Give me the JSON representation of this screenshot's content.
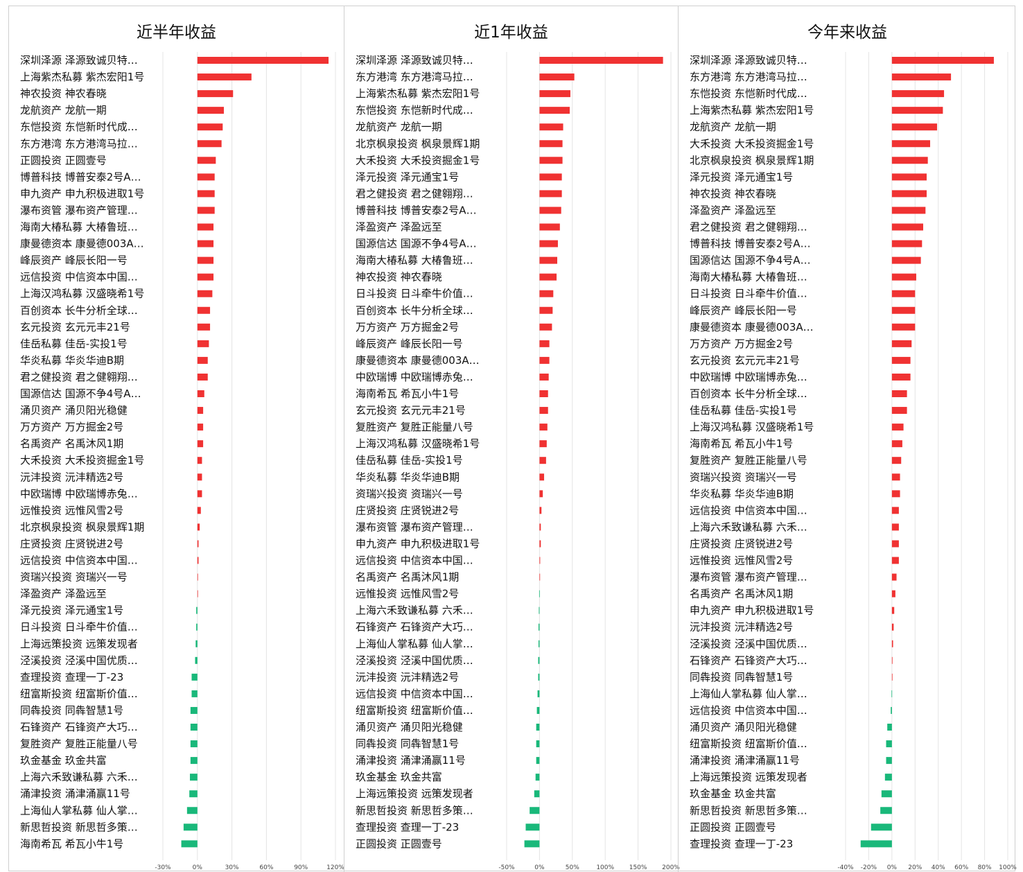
{
  "colors": {
    "positive": "#f03232",
    "negative": "#19b87a",
    "grid": "#e4e4e4",
    "border": "#cfcfcf"
  },
  "chart_data": [
    {
      "type": "bar",
      "orientation": "horizontal",
      "title": "近半年收益",
      "unit": "%",
      "xlim": [
        -30,
        120
      ],
      "xticks": [
        -30,
        0,
        30,
        60,
        90,
        120
      ],
      "tick_labels": [
        "-30%",
        "0%",
        "30%",
        "60%",
        "90%",
        "120%"
      ],
      "grid": true,
      "categories": [
        "深圳泽源 泽源致诚贝特…",
        "上海紫杰私募 紫杰宏阳1号",
        "神农投资 神农春晓",
        "龙航资产 龙航一期",
        "东恺投资 东恺新时代成…",
        "东方港湾 东方港湾马拉…",
        "正圆投资 正圆壹号",
        "博普科技 博普安泰2号A…",
        "申九资产 申九积极进取1号",
        "瀑布资管 瀑布资产管理…",
        "海南大椿私募 大椿鲁班…",
        "康曼德资本 康曼德003A…",
        "峰辰资产 峰辰长阳一号",
        "远信投资 中信资本中国…",
        "上海汉鸿私募 汉盛晓希1号",
        "百创资本 长牛分析全球…",
        "玄元投资 玄元元丰21号",
        "佳岳私募 佳岳-实投1号",
        "华炎私募 华炎华迪B期",
        "君之健投资 君之健翱翔…",
        "国源信达 国源不争4号A…",
        "涌贝资产 涌贝阳光稳健",
        "万方资产 万方掘金2号",
        "名禹资产 名禹沐风1期",
        "大禾投资 大禾投资掘金1号",
        "沅沣投资 沅沣精选2号",
        "中欧瑞博 中欧瑞博赤兔…",
        "远惟投资 远惟风雪2号",
        "北京枫泉投资 枫泉景辉1期",
        "庄贤投资 庄贤锐进2号",
        "远信投资 中信资本中国…",
        "资瑞兴投资 资瑞兴一号",
        "泽盈资产 泽盈远至",
        "泽元投资 泽元通宝1号",
        "日斗投资 日斗牵牛价值…",
        "上海远策投资 远策发现者",
        "泾溪投资 泾溪中国优质…",
        "查理投资 查理一丁-23",
        "纽富斯投资 纽富斯价值…",
        "同犇投资 同犇智慧1号",
        "石锋资产 石锋资产大巧…",
        "复胜资产 复胜正能量八号",
        "玖金基金 玖金共富",
        "上海六禾致谦私募 六禾…",
        "涌津投资 涌津涌赢11号",
        "上海仙人掌私募 仙人掌…",
        "新思哲投资 新思哲多策…",
        "海南希瓦 希瓦小牛1号"
      ],
      "values": [
        114,
        47,
        31,
        23,
        22,
        21,
        16,
        15,
        15,
        15,
        14,
        14,
        14,
        14,
        13,
        11,
        11,
        10,
        9,
        9,
        6,
        5,
        5,
        5,
        4,
        4,
        4,
        3,
        2,
        1,
        1,
        0.5,
        0.3,
        -1,
        -1,
        -1.5,
        -2,
        -5,
        -5,
        -6,
        -6,
        -6,
        -6,
        -6.5,
        -7,
        -9,
        -12,
        -14
      ]
    },
    {
      "type": "bar",
      "orientation": "horizontal",
      "title": "近1年收益",
      "unit": "%",
      "xlim": [
        -50,
        200
      ],
      "xticks": [
        -50,
        0,
        50,
        100,
        150,
        200
      ],
      "tick_labels": [
        "-50%",
        "0%",
        "50%",
        "100%",
        "150%",
        "200%"
      ],
      "grid": true,
      "categories": [
        "深圳泽源 泽源致诚贝特…",
        "东方港湾 东方港湾马拉…",
        "上海紫杰私募 紫杰宏阳1号",
        "东恺投资 东恺新时代成…",
        "龙航资产 龙航一期",
        "北京枫泉投资 枫泉景辉1期",
        "大禾投资 大禾投资掘金1号",
        "泽元投资 泽元通宝1号",
        "君之健投资 君之健翱翔…",
        "博普科技 博普安泰2号A…",
        "泽盈资产 泽盈远至",
        "国源信达 国源不争4号A…",
        "海南大椿私募 大椿鲁班…",
        "神农投资 神农春晓",
        "日斗投资 日斗牵牛价值…",
        "百创资本 长牛分析全球…",
        "万方资产 万方掘金2号",
        "峰辰资产 峰辰长阳一号",
        "康曼德资本 康曼德003A…",
        "中欧瑞博 中欧瑞博赤兔…",
        "海南希瓦 希瓦小牛1号",
        "玄元投资 玄元元丰21号",
        "复胜资产 复胜正能量八号",
        "上海汉鸿私募 汉盛晓希1号",
        "佳岳私募 佳岳-实投1号",
        "华炎私募 华炎华迪B期",
        "资瑞兴投资 资瑞兴一号",
        "庄贤投资 庄贤锐进2号",
        "瀑布资管 瀑布资产管理…",
        "申九资产 申九积极进取1号",
        "远信投资 中信资本中国…",
        "名禹资产 名禹沐风1期",
        "远惟投资 远惟风雪2号",
        "上海六禾致谦私募 六禾…",
        "石锋资产 石锋资产大巧…",
        "上海仙人掌私募 仙人掌…",
        "泾溪投资 泾溪中国优质…",
        "沅沣投资 沅沣精选2号",
        "远信投资 中信资本中国…",
        "纽富斯投资 纽富斯价值…",
        "涌贝资产 涌贝阳光稳健",
        "同犇投资 同犇智慧1号",
        "涌津投资 涌津涌赢11号",
        "玖金基金 玖金共富",
        "上海远策投资 远策发现者",
        "新思哲投资 新思哲多策…",
        "查理投资 查理一丁-23",
        "正圆投资 正圆壹号"
      ],
      "values": [
        188,
        53,
        47,
        46,
        36,
        35,
        35,
        34,
        34,
        33,
        31,
        28,
        27,
        26,
        21,
        20,
        19,
        15,
        15,
        14,
        13,
        13,
        12,
        11,
        10,
        7,
        5,
        3,
        2,
        2,
        1,
        0.5,
        -0.5,
        -1,
        -1.5,
        -1.5,
        -2,
        -2,
        -3,
        -4,
        -5,
        -5,
        -5,
        -6,
        -8,
        -15,
        -21,
        -23
      ]
    },
    {
      "type": "bar",
      "orientation": "horizontal",
      "title": "今年来收益",
      "unit": "%",
      "xlim": [
        -40,
        100
      ],
      "xticks": [
        -40,
        -20,
        0,
        20,
        40,
        60,
        80,
        100
      ],
      "tick_labels": [
        "-40%",
        "-20%",
        "0%",
        "20%",
        "40%",
        "60%",
        "80%",
        "100%"
      ],
      "grid": true,
      "categories": [
        "深圳泽源 泽源致诚贝特…",
        "东方港湾 东方港湾马拉…",
        "东恺投资 东恺新时代成…",
        "上海紫杰私募 紫杰宏阳1号",
        "龙航资产 龙航一期",
        "大禾投资 大禾投资掘金1号",
        "北京枫泉投资 枫泉景辉1期",
        "泽元投资 泽元通宝1号",
        "神农投资 神农春晓",
        "泽盈资产 泽盈远至",
        "君之健投资 君之健翱翔…",
        "博普科技 博普安泰2号A…",
        "国源信达 国源不争4号A…",
        "海南大椿私募 大椿鲁班…",
        "日斗投资 日斗牵牛价值…",
        "峰辰资产 峰辰长阳一号",
        "康曼德资本 康曼德003A…",
        "万方资产 万方掘金2号",
        "玄元投资 玄元元丰21号",
        "中欧瑞博 中欧瑞博赤兔…",
        "百创资本 长牛分析全球…",
        "佳岳私募 佳岳-实投1号",
        "上海汉鸿私募 汉盛晓希1号",
        "海南希瓦 希瓦小牛1号",
        "复胜资产 复胜正能量八号",
        "资瑞兴投资 资瑞兴一号",
        "华炎私募 华炎华迪B期",
        "远信投资 中信资本中国…",
        "上海六禾致谦私募 六禾…",
        "庄贤投资 庄贤锐进2号",
        "远惟投资 远惟风雪2号",
        "瀑布资管 瀑布资产管理…",
        "名禹资产 名禹沐风1期",
        "申九资产 申九积极进取1号",
        "沅沣投资 沅沣精选2号",
        "泾溪投资 泾溪中国优质…",
        "石锋资产 石锋资产大巧…",
        "同犇投资 同犇智慧1号",
        "上海仙人掌私募 仙人掌…",
        "远信投资 中信资本中国…",
        "涌贝资产 涌贝阳光稳健",
        "纽富斯投资 纽富斯价值…",
        "涌津投资 涌津涌赢11号",
        "上海远策投资 远策发现者",
        "玖金基金 玖金共富",
        "新思哲投资 新思哲多策…",
        "正圆投资 正圆壹号",
        "查理投资 查理一丁-23"
      ],
      "values": [
        88,
        51,
        45,
        44,
        39,
        33,
        31,
        30,
        30,
        29,
        27,
        26,
        25,
        21,
        20,
        20,
        20,
        17,
        16,
        16,
        13,
        13,
        10,
        9,
        8,
        7,
        7,
        6,
        6,
        6,
        6,
        4,
        3,
        2,
        1.5,
        1,
        0.5,
        0.3,
        -0.3,
        -1,
        -4,
        -5,
        -5,
        -6,
        -9,
        -10,
        -18,
        -27
      ]
    }
  ]
}
